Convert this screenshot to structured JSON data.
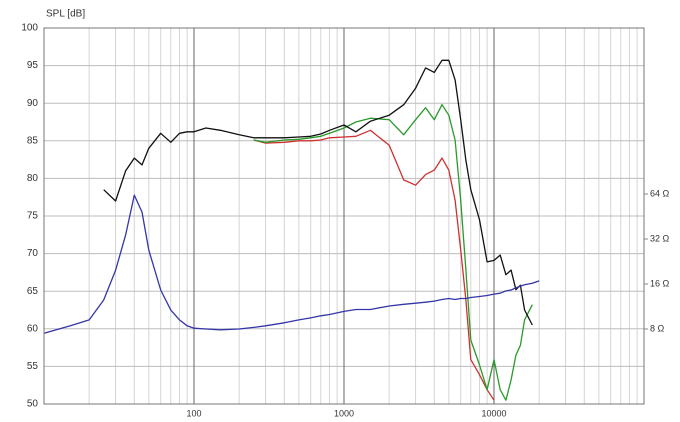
{
  "chart_data": {
    "type": "line",
    "y_label": "SPL [dB]",
    "x": [
      10,
      15,
      20,
      25,
      30,
      35,
      40,
      45,
      50,
      60,
      70,
      80,
      90,
      100,
      120,
      150,
      200,
      250,
      300,
      400,
      500,
      600,
      700,
      800,
      1000,
      1200,
      1500,
      2000,
      2500,
      3000,
      3500,
      4000,
      4500,
      5000,
      5500,
      6000,
      6500,
      7000,
      8000,
      9000,
      10000,
      11000,
      12000,
      13000,
      14000,
      15000,
      16000,
      18000,
      20000
    ],
    "xlim": [
      10,
      100000
    ],
    "xscale": "log",
    "xticks": [
      100,
      1000,
      10000
    ],
    "xminorticks": [
      20,
      30,
      40,
      50,
      60,
      70,
      80,
      90,
      200,
      300,
      400,
      500,
      600,
      700,
      800,
      900,
      2000,
      3000,
      4000,
      5000,
      6000,
      7000,
      8000,
      9000,
      20000,
      30000,
      40000,
      50000,
      60000,
      70000,
      80000,
      90000
    ],
    "ylim": [
      50,
      100
    ],
    "yticks": [
      50,
      55,
      60,
      65,
      70,
      75,
      80,
      85,
      90,
      95,
      100
    ],
    "y2lim": [
      2.52,
      826
    ],
    "y2scale": "log",
    "y2ticks": [
      {
        "value": 8,
        "label": "8 Ω"
      },
      {
        "value": 16,
        "label": "16 Ω"
      },
      {
        "value": 32,
        "label": "32 Ω"
      },
      {
        "value": 64,
        "label": "64 Ω"
      }
    ],
    "grid": true,
    "series": [
      {
        "color": "#d03030",
        "values": [
          null,
          null,
          null,
          null,
          null,
          null,
          null,
          null,
          null,
          null,
          null,
          null,
          null,
          null,
          null,
          null,
          null,
          85.1,
          84.7,
          84.8,
          85,
          85,
          85.1,
          85.4,
          85.5,
          85.6,
          86.4,
          84.4,
          79.8,
          79.1,
          80.5,
          81.1,
          82.7,
          81.1,
          77.1,
          70.5,
          63.8,
          55.9,
          53.9,
          51.9,
          50.5,
          null,
          null,
          null,
          null,
          null,
          null,
          null,
          null
        ]
      },
      {
        "color": "#2a9a2a",
        "values": [
          null,
          null,
          null,
          null,
          null,
          null,
          null,
          null,
          null,
          null,
          null,
          null,
          null,
          null,
          null,
          null,
          null,
          85.1,
          84.8,
          85.1,
          85.2,
          85.4,
          85.6,
          86,
          86.7,
          87.5,
          88,
          87.8,
          85.8,
          87.8,
          89.4,
          87.8,
          89.8,
          88.4,
          85.1,
          77.1,
          67.8,
          58.5,
          55.2,
          51.9,
          55.9,
          51.9,
          50.5,
          53.2,
          56.5,
          57.8,
          61.2,
          63.2,
          null
        ]
      },
      {
        "color": "#111111",
        "values": [
          null,
          null,
          null,
          78.5,
          77,
          81,
          82.7,
          81.8,
          84,
          86,
          84.8,
          86,
          86.2,
          86.2,
          86.7,
          86.4,
          85.8,
          85.4,
          85.4,
          85.4,
          85.5,
          85.6,
          85.9,
          86.4,
          87.1,
          86.2,
          87.6,
          88.4,
          89.8,
          92,
          94.7,
          94.1,
          95.7,
          95.7,
          93.1,
          87.8,
          82.4,
          78.5,
          74.5,
          68.9,
          69.1,
          69.8,
          67.2,
          67.8,
          65.2,
          65.8,
          62.5,
          60.5,
          null
        ]
      },
      {
        "color": "#3535a8",
        "axis": "y2",
        "values": [
          7.5,
          8.4,
          9.2,
          12.5,
          19.8,
          34,
          63,
          48.5,
          27,
          14.6,
          10.7,
          9.2,
          8.4,
          8.1,
          8,
          7.9,
          8,
          8.2,
          8.4,
          8.8,
          9.2,
          9.5,
          9.8,
          10,
          10.5,
          10.8,
          10.8,
          11.4,
          11.7,
          11.9,
          12.1,
          12.3,
          12.6,
          12.8,
          12.6,
          12.8,
          12.8,
          13,
          13.2,
          13.4,
          13.7,
          13.9,
          14.4,
          14.6,
          15.1,
          15.5,
          15.8,
          16.2,
          16.8
        ]
      }
    ]
  }
}
